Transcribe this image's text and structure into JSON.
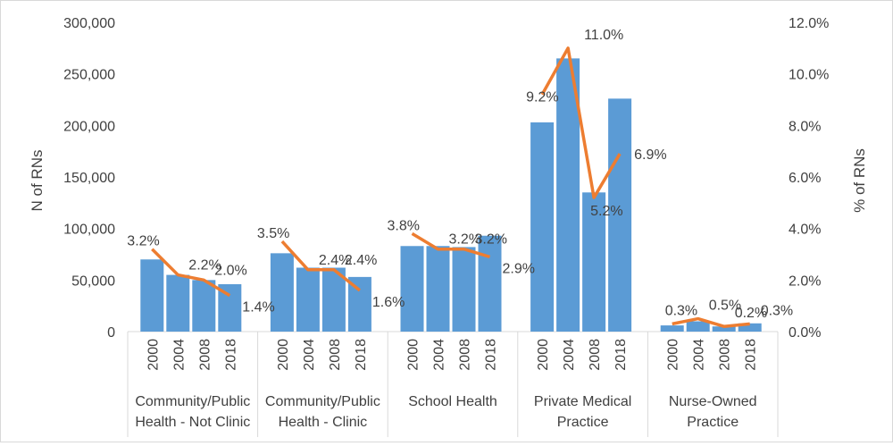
{
  "chart_data": {
    "type": "bar",
    "groups": [
      {
        "label": [
          "Community/Public",
          "Health - Not Clinic"
        ],
        "years": [
          "2000",
          "2004",
          "2008",
          "2018"
        ],
        "rn_counts": [
          70000,
          55000,
          50000,
          46000
        ],
        "pct": [
          3.2,
          2.2,
          2.0,
          1.4
        ],
        "pct_labels": [
          "3.2%",
          "2.2%",
          "2.0%",
          "1.4%"
        ]
      },
      {
        "label": [
          "Community/Public",
          "Health - Clinic"
        ],
        "years": [
          "2000",
          "2004",
          "2008",
          "2018"
        ],
        "rn_counts": [
          76000,
          62000,
          62000,
          53000
        ],
        "pct": [
          3.5,
          2.4,
          2.4,
          1.6
        ],
        "pct_labels": [
          "3.5%",
          "2.4%",
          "2.4%",
          "1.6%"
        ]
      },
      {
        "label": [
          "School Health"
        ],
        "years": [
          "2000",
          "2004",
          "2008",
          "2018"
        ],
        "rn_counts": [
          83000,
          83000,
          82000,
          93000
        ],
        "pct": [
          3.8,
          3.2,
          3.2,
          2.9
        ],
        "pct_labels": [
          "3.8%",
          "3.2%",
          "3.2%",
          "2.9%"
        ]
      },
      {
        "label": [
          "Private Medical",
          "Practice"
        ],
        "years": [
          "2000",
          "2004",
          "2008",
          "2018"
        ],
        "rn_counts": [
          203000,
          265000,
          135000,
          226000
        ],
        "pct": [
          9.2,
          11.0,
          5.2,
          6.9
        ],
        "pct_labels": [
          "9.2%",
          "11.0%",
          "5.2%",
          "6.9%"
        ]
      },
      {
        "label": [
          "Nurse-Owned",
          "Practice"
        ],
        "years": [
          "2000",
          "2004",
          "2008",
          "2018"
        ],
        "rn_counts": [
          6000,
          10000,
          5000,
          8000
        ],
        "pct": [
          0.3,
          0.5,
          0.2,
          0.3
        ],
        "pct_labels": [
          "0.3%",
          "0.5%",
          "0.2%",
          "0.3%"
        ]
      }
    ],
    "ylabel_left": "N of RNs",
    "ylabel_right": "% of RNs",
    "y_left_range": [
      0,
      300000
    ],
    "y_left_ticks": [
      "0",
      "50,000",
      "100,000",
      "150,000",
      "200,000",
      "250,000",
      "300,000"
    ],
    "y_right_range": [
      0,
      12
    ],
    "y_right_ticks": [
      "0.0%",
      "2.0%",
      "4.0%",
      "6.0%",
      "8.0%",
      "10.0%",
      "12.0%"
    ],
    "grid": false,
    "colors": {
      "bars": "#5b9bd5",
      "line": "#ed7d31",
      "axis": "#d9d9d9",
      "text": "#404040"
    }
  }
}
